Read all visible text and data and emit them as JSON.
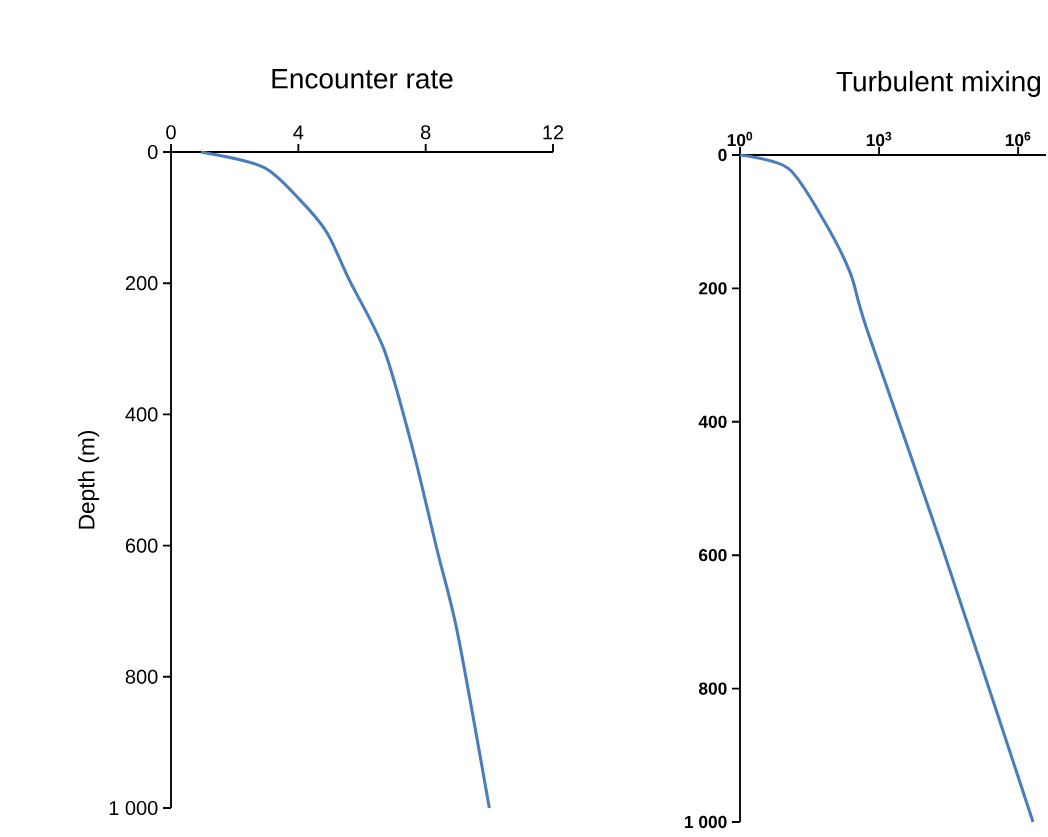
{
  "chart_data": [
    {
      "type": "line",
      "title": "Encounter rate",
      "ylabel": "Depth (m)",
      "color": "#4a7ebb",
      "x": [
        0.94,
        2.9,
        4.05,
        4.9,
        5.6,
        6.7,
        7.6,
        8.36,
        9.0,
        10.0
      ],
      "values": [
        0,
        23,
        73,
        123,
        195,
        302,
        454,
        607,
        733,
        1000
      ],
      "xlim": [
        0,
        12
      ],
      "xticks": [
        0,
        4,
        8,
        12
      ],
      "ylim": [
        1000,
        0
      ],
      "yticks": [
        0,
        200,
        400,
        600,
        800,
        {
          "value": 1000,
          "label": "1 000"
        }
      ]
    },
    {
      "type": "line",
      "title": "Turbulent mixing",
      "color": "#4a7ebb",
      "log": "x",
      "x": [
        1,
        11,
        63,
        240,
        550,
        23000,
        2100000
      ],
      "values": [
        0,
        20,
        97,
        177,
        262,
        588,
        1000
      ],
      "xlim": [
        1,
        4000000
      ],
      "xticks": [
        {
          "value": 1,
          "label": "10$^{0}$"
        },
        {
          "value": 1000,
          "label": "10$^{3}$"
        },
        {
          "value": 1000000,
          "label": "10$^{6}$"
        }
      ],
      "ylim": [
        1000,
        0
      ],
      "yticks": [
        0,
        200,
        400,
        600,
        800,
        {
          "value": 1000,
          "label": "1 000"
        }
      ]
    }
  ]
}
